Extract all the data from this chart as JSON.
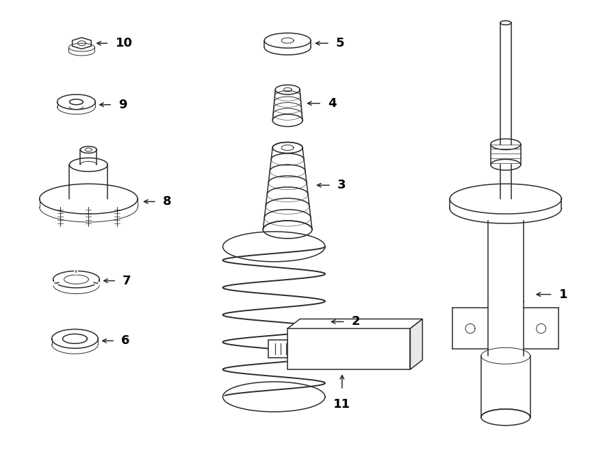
{
  "bg_color": "#ffffff",
  "line_color": "#2a2a2a",
  "text_color": "#000000",
  "lw": 1.1,
  "lw_thin": 0.7,
  "fontsize": 11
}
